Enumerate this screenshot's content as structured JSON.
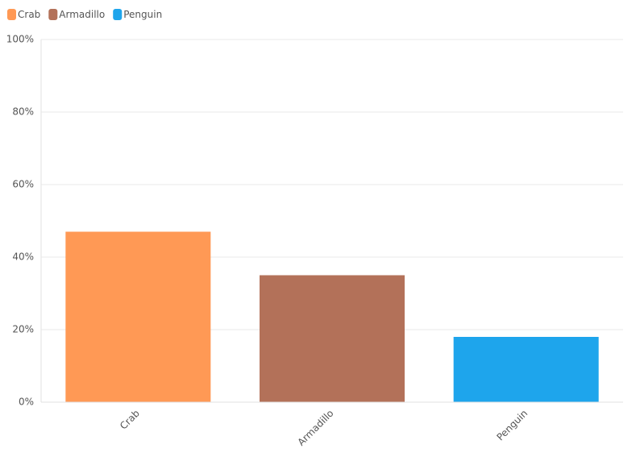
{
  "chart_data": {
    "type": "bar",
    "categories": [
      "Crab",
      "Armadillo",
      "Penguin"
    ],
    "values": [
      47,
      35,
      18
    ],
    "colors": [
      "#ff9955",
      "#b37159",
      "#1ea5ec"
    ],
    "ylim": [
      0,
      100
    ],
    "yticks": [
      {
        "value": 0,
        "label": "0%"
      },
      {
        "value": 20,
        "label": "20%"
      },
      {
        "value": 40,
        "label": "40%"
      },
      {
        "value": 60,
        "label": "60%"
      },
      {
        "value": 80,
        "label": "80%"
      },
      {
        "value": 100,
        "label": "100%"
      }
    ],
    "grid": true,
    "legend": "top-left"
  }
}
